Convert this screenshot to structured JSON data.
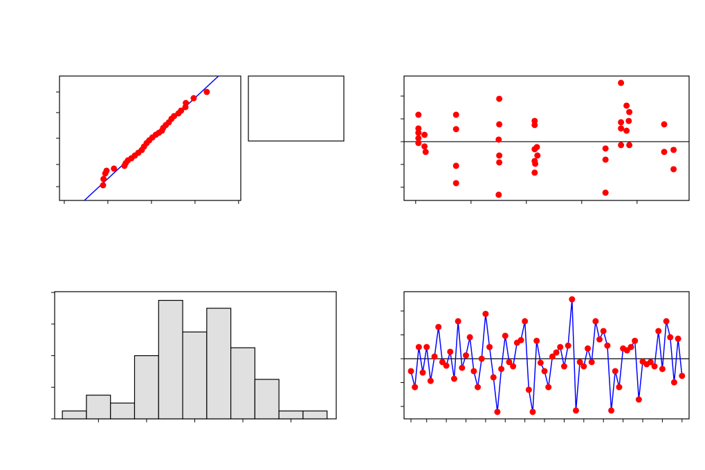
{
  "chart_data": [
    {
      "type": "scatter",
      "xlim": [
        -0.11,
        4.05
      ],
      "ylim": [
        0,
        100
      ],
      "xticks": [
        0,
        1,
        2,
        3,
        4
      ],
      "yticks": [
        11.1,
        28.9,
        50,
        70.6,
        87.2
      ],
      "points": {
        "color": "#ff0000",
        "x": [
          0.89,
          0.9,
          0.94,
          0.97,
          1.14,
          1.38,
          1.41,
          1.46,
          1.54,
          1.62,
          1.7,
          1.78,
          1.83,
          1.89,
          1.95,
          2.02,
          2.1,
          2.17,
          2.24,
          2.27,
          2.33,
          2.4,
          2.46,
          2.52,
          2.62,
          2.68,
          2.78,
          2.79,
          2.97,
          3.27
        ],
        "values": [
          12.2,
          17.2,
          21.7,
          23.9,
          25.6,
          27.8,
          30,
          32.2,
          33.9,
          36.1,
          38.3,
          40.6,
          43.3,
          46.1,
          48.3,
          50.6,
          52.8,
          54.4,
          56.1,
          58.3,
          60.6,
          62.8,
          65.6,
          67.8,
          70,
          72.2,
          75,
          78.3,
          82.2,
          87.2
        ]
      },
      "fit_line": {
        "color": "#0000ff",
        "x": [
          0.46,
          3.54
        ],
        "values": [
          0,
          100
        ]
      }
    },
    {
      "type": "scatter",
      "xlim": [
        -0.21,
        4.94
      ],
      "ylim": [
        -2.58,
        2.88
      ],
      "xticks": [
        0,
        1,
        2,
        3,
        4
      ],
      "yticks": [
        -2,
        -1,
        0,
        1,
        2
      ],
      "reference_line": 0,
      "points": {
        "color": "#ff0000",
        "x": [
          0.05,
          0.05,
          0.05,
          0.05,
          0.05,
          0.16,
          0.16,
          0.18,
          0.73,
          0.73,
          0.73,
          0.73,
          1.51,
          1.51,
          1.5,
          1.51,
          1.51,
          1.5,
          2.15,
          2.15,
          2.19,
          2.15,
          2.2,
          2.15,
          2.16,
          2.15,
          3.43,
          3.43,
          3.43,
          3.71,
          3.81,
          3.86,
          3.71,
          3.85,
          3.71,
          3.81,
          3.71,
          3.86,
          4.49,
          4.49,
          4.66,
          4.66
        ],
        "values": [
          1.18,
          0.58,
          0.39,
          0.15,
          -0.06,
          0.3,
          -0.21,
          -0.45,
          1.18,
          0.55,
          -1.06,
          -1.82,
          1.88,
          0.76,
          0.09,
          -0.61,
          -0.91,
          -2.33,
          0.91,
          0.73,
          -0.24,
          -0.33,
          -0.61,
          -0.85,
          -0.97,
          -1.36,
          -0.3,
          -0.79,
          -2.24,
          2.58,
          1.58,
          1.3,
          0.85,
          0.91,
          0.58,
          0.48,
          -0.15,
          -0.15,
          0.76,
          -0.45,
          -0.36,
          -1.21
        ]
      }
    },
    {
      "type": "histogram",
      "xlim": [
        -2.91,
        2.94
      ],
      "ylim": [
        0,
        16.1
      ],
      "xticks": [
        -2,
        -1,
        0,
        1,
        2
      ],
      "yticks": [
        0,
        4,
        8,
        12,
        16
      ],
      "color": "#e0e0e0",
      "bins": [
        -2.75,
        -2.25,
        -1.75,
        -1.25,
        -0.75,
        -0.25,
        0.25,
        0.75,
        1.25,
        1.75,
        2.25,
        2.75
      ],
      "counts": [
        1,
        3,
        2,
        8,
        15,
        11,
        14,
        9,
        5,
        1,
        1
      ]
    },
    {
      "type": "line",
      "xlim": [
        -0.76,
        71.8
      ],
      "ylim": [
        -2.52,
        2.81
      ],
      "xticks": [
        1,
        5,
        10,
        15,
        20,
        25,
        30,
        35,
        40,
        45,
        50,
        55,
        60,
        65,
        70
      ],
      "yticks": [
        -2,
        -1,
        0,
        1,
        2
      ],
      "reference_line": 0,
      "color": "#0000ff",
      "marker_color": "#ff0000",
      "x": [
        1,
        2,
        3,
        4,
        5,
        6,
        7,
        8,
        9,
        10,
        11,
        12,
        13,
        14,
        15,
        16,
        17,
        18,
        19,
        20,
        21,
        22,
        23,
        24,
        25,
        26,
        27,
        28,
        29,
        30,
        31,
        32,
        33,
        34,
        35,
        36,
        37,
        38,
        39,
        40,
        41,
        42,
        43,
        44,
        45,
        46,
        47,
        48,
        49,
        50,
        51,
        52,
        53,
        54,
        55,
        56,
        57,
        58,
        59,
        60,
        61,
        62,
        63,
        64,
        65,
        66,
        67,
        68,
        69,
        70
      ],
      "values": [
        -0.52,
        -1.19,
        0.49,
        -0.58,
        0.49,
        -0.93,
        0.09,
        1.33,
        -0.14,
        -0.29,
        0.29,
        -0.84,
        1.57,
        -0.38,
        0.14,
        0.9,
        -0.52,
        -1.19,
        0,
        1.88,
        0.49,
        -0.78,
        -2.23,
        -0.43,
        0.96,
        -0.14,
        -0.32,
        0.67,
        0.78,
        1.57,
        -1.3,
        -2.23,
        0.75,
        -0.17,
        -0.52,
        -1.19,
        0.09,
        0.26,
        0.49,
        -0.32,
        0.55,
        2.49,
        -2.17,
        -0.14,
        -0.32,
        0.43,
        -0.14,
        1.57,
        0.81,
        1.16,
        0.55,
        -2.17,
        -0.52,
        -1.19,
        0.43,
        0.35,
        0.49,
        0.75,
        -1.71,
        -0.12,
        -0.23,
        -0.14,
        -0.32,
        1.16,
        -0.43,
        1.57,
        0.9,
        -0.99,
        0.84,
        -0.72
      ]
    }
  ]
}
